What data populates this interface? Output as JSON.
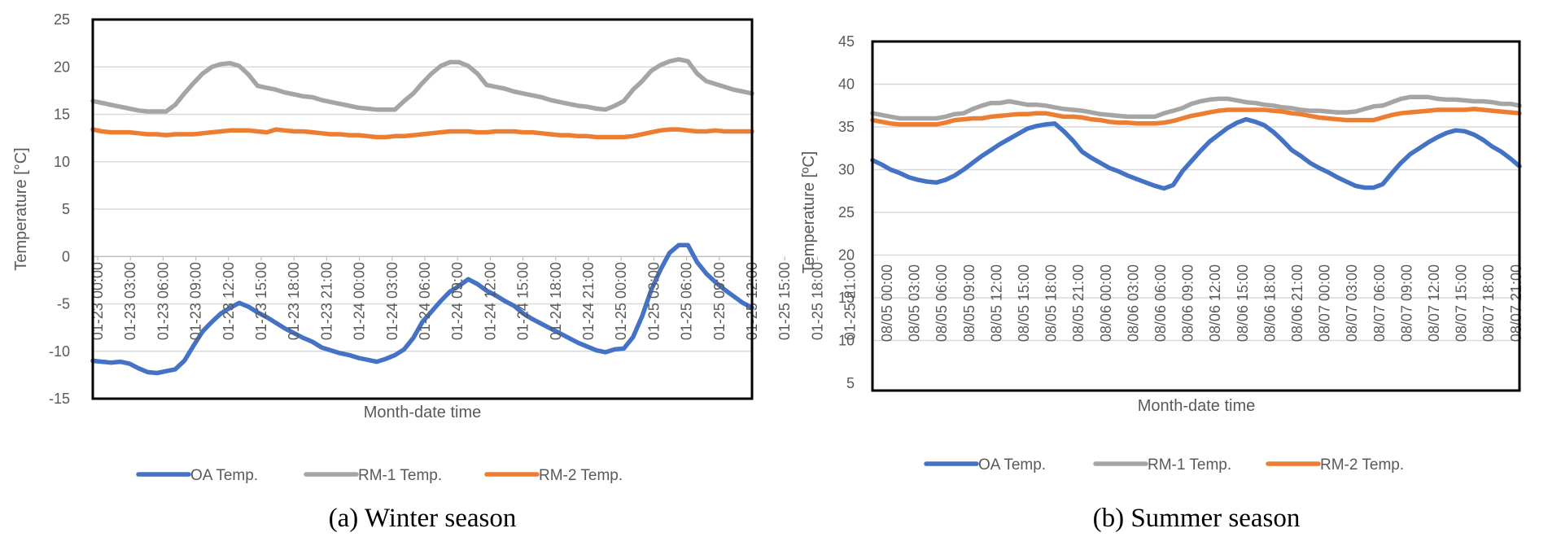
{
  "chart_data": [
    {
      "type": "line",
      "title": "",
      "caption": "(a) Winter season",
      "xlabel": "Month-date  time",
      "ylabel": "Temperature [°C]",
      "ylim": [
        -15,
        25
      ],
      "yticks": [
        25,
        20,
        15,
        10,
        5,
        0,
        -5,
        -10,
        -15
      ],
      "grid": true,
      "legend_position": "bottom",
      "x_points": 73,
      "x_tick_labels": [
        "01-23 00:00",
        "01-23 03:00",
        "01-23 06:00",
        "01-23 09:00",
        "01-23 12:00",
        "01-23 15:00",
        "01-23 18:00",
        "01-23 21:00",
        "01-24 00:00",
        "01-24 03:00",
        "01-24 06:00",
        "01-24 09:00",
        "01-24 12:00",
        "01-24 15:00",
        "01-24 18:00",
        "01-24 21:00",
        "01-25 00:00",
        "01-25 03:00",
        "01-25 06:00",
        "01-25 09:00",
        "01-25 12:00",
        "01-25 15:00",
        "01-25 18:00",
        "01-25 21:00"
      ],
      "series": [
        {
          "name": "OA Temp.",
          "color": "#4472c4",
          "values": [
            -11,
            -11.1,
            -11.2,
            -11.1,
            -11.3,
            -11.8,
            -12.2,
            -12.3,
            -12.1,
            -11.9,
            -11,
            -9.4,
            -7.9,
            -6.9,
            -6,
            -5.4,
            -4.9,
            -5.3,
            -5.9,
            -6.4,
            -7,
            -7.6,
            -8.1,
            -8.6,
            -9,
            -9.6,
            -9.9,
            -10.2,
            -10.4,
            -10.7,
            -10.9,
            -11.1,
            -10.8,
            -10.4,
            -9.8,
            -8.6,
            -6.9,
            -5.8,
            -4.7,
            -3.7,
            -3.1,
            -2.4,
            -2.9,
            -3.6,
            -4.1,
            -4.7,
            -5.2,
            -6,
            -6.6,
            -7.1,
            -7.6,
            -8.1,
            -8.6,
            -9.1,
            -9.5,
            -9.9,
            -10.1,
            -9.8,
            -9.7,
            -8.5,
            -6.3,
            -3.5,
            -1.4,
            0.4,
            1.2,
            1.2,
            -0.6,
            -1.8,
            -2.7,
            -3.5,
            -4.2,
            -4.9,
            -5.4
          ]
        },
        {
          "name": "RM-1 Temp.",
          "color": "#a5a5a5",
          "values": [
            16.4,
            16.2,
            16,
            15.8,
            15.6,
            15.4,
            15.3,
            15.3,
            15.3,
            16,
            17.2,
            18.3,
            19.3,
            20,
            20.3,
            20.4,
            20.1,
            19.2,
            18,
            17.8,
            17.6,
            17.3,
            17.1,
            16.9,
            16.8,
            16.5,
            16.3,
            16.1,
            15.9,
            15.7,
            15.6,
            15.5,
            15.5,
            15.5,
            16.4,
            17.2,
            18.3,
            19.3,
            20.1,
            20.5,
            20.5,
            20.1,
            19.3,
            18.1,
            17.9,
            17.7,
            17.4,
            17.2,
            17,
            16.8,
            16.5,
            16.3,
            16.1,
            15.9,
            15.8,
            15.6,
            15.5,
            15.9,
            16.4,
            17.6,
            18.5,
            19.6,
            20.2,
            20.6,
            20.8,
            20.6,
            19.3,
            18.5,
            18.2,
            17.9,
            17.6,
            17.4,
            17.2
          ]
        },
        {
          "name": "RM-2 Temp.",
          "color": "#ed7d31",
          "values": [
            13.4,
            13.2,
            13.1,
            13.1,
            13.1,
            13,
            12.9,
            12.9,
            12.8,
            12.9,
            12.9,
            12.9,
            13,
            13.1,
            13.2,
            13.3,
            13.3,
            13.3,
            13.2,
            13.1,
            13.4,
            13.3,
            13.2,
            13.2,
            13.1,
            13,
            12.9,
            12.9,
            12.8,
            12.8,
            12.7,
            12.6,
            12.6,
            12.7,
            12.7,
            12.8,
            12.9,
            13,
            13.1,
            13.2,
            13.2,
            13.2,
            13.1,
            13.1,
            13.2,
            13.2,
            13.2,
            13.1,
            13.1,
            13,
            12.9,
            12.8,
            12.8,
            12.7,
            12.7,
            12.6,
            12.6,
            12.6,
            12.6,
            12.7,
            12.9,
            13.1,
            13.3,
            13.4,
            13.4,
            13.3,
            13.2,
            13.2,
            13.3,
            13.2,
            13.2,
            13.2,
            13.2
          ]
        }
      ]
    },
    {
      "type": "line",
      "title": "",
      "caption": "(b) Summer season",
      "xlabel": "Month-date  time",
      "ylabel": "Temperature [ºC]",
      "ylim": [
        5,
        45
      ],
      "yticks": [
        45,
        40,
        35,
        30,
        25,
        20,
        15,
        10,
        5
      ],
      "grid": true,
      "legend_position": "bottom",
      "x_points": 72,
      "x_tick_labels": [
        "08/05 00:00",
        "08/05 03:00",
        "08/05 06:00",
        "08/05 09:00",
        "08/05 12:00",
        "08/05 15:00",
        "08/05 18:00",
        "08/05 21:00",
        "08/06 00:00",
        "08/06 03:00",
        "08/06 06:00",
        "08/06 09:00",
        "08/06 12:00",
        "08/06 15:00",
        "08/06 18:00",
        "08/06 21:00",
        "08/07 00:00",
        "08/07 03:00",
        "08/07 06:00",
        "08/07 09:00",
        "08/07 12:00",
        "08/07 15:00",
        "08/07 18:00",
        "08/07 21:00"
      ],
      "series": [
        {
          "name": "OA Temp.",
          "color": "#4472c4",
          "values": [
            31.1,
            30.6,
            30,
            29.6,
            29.1,
            28.8,
            28.6,
            28.5,
            28.8,
            29.3,
            30,
            30.8,
            31.6,
            32.3,
            33,
            33.6,
            34.2,
            34.8,
            35.1,
            35.3,
            35.4,
            34.5,
            33.4,
            32.1,
            31.4,
            30.8,
            30.2,
            29.8,
            29.3,
            28.9,
            28.5,
            28.1,
            27.8,
            28.2,
            29.8,
            31,
            32.2,
            33.3,
            34.1,
            34.9,
            35.5,
            35.9,
            35.6,
            35.2,
            34.4,
            33.4,
            32.3,
            31.6,
            30.8,
            30.2,
            29.7,
            29.1,
            28.6,
            28.1,
            27.9,
            27.9,
            28.3,
            29.6,
            30.8,
            31.8,
            32.5,
            33.2,
            33.8,
            34.3,
            34.6,
            34.5,
            34.1,
            33.5,
            32.7,
            32.1,
            31.3,
            30.4
          ]
        },
        {
          "name": "RM-1 Temp.",
          "color": "#a5a5a5",
          "values": [
            36.6,
            36.4,
            36.2,
            36,
            36,
            36,
            36,
            36,
            36.2,
            36.5,
            36.6,
            37.1,
            37.5,
            37.8,
            37.8,
            38,
            37.8,
            37.6,
            37.6,
            37.5,
            37.3,
            37.1,
            37,
            36.9,
            36.7,
            36.5,
            36.4,
            36.3,
            36.2,
            36.2,
            36.2,
            36.2,
            36.6,
            36.9,
            37.2,
            37.7,
            38,
            38.2,
            38.3,
            38.3,
            38.1,
            37.9,
            37.8,
            37.6,
            37.5,
            37.3,
            37.2,
            37,
            36.9,
            36.9,
            36.8,
            36.7,
            36.7,
            36.8,
            37.1,
            37.4,
            37.5,
            37.9,
            38.3,
            38.5,
            38.5,
            38.5,
            38.3,
            38.2,
            38.2,
            38.1,
            38,
            38,
            37.9,
            37.7,
            37.7,
            37.5
          ]
        },
        {
          "name": "RM-2 Temp.",
          "color": "#ed7d31",
          "values": [
            35.8,
            35.6,
            35.4,
            35.3,
            35.3,
            35.3,
            35.3,
            35.3,
            35.5,
            35.8,
            35.9,
            36,
            36,
            36.2,
            36.3,
            36.4,
            36.5,
            36.5,
            36.6,
            36.6,
            36.4,
            36.2,
            36.2,
            36.1,
            35.9,
            35.8,
            35.6,
            35.5,
            35.5,
            35.4,
            35.4,
            35.4,
            35.5,
            35.7,
            36,
            36.3,
            36.5,
            36.7,
            36.9,
            37,
            37,
            37,
            37,
            37,
            36.9,
            36.8,
            36.6,
            36.5,
            36.3,
            36.1,
            36,
            35.9,
            35.8,
            35.8,
            35.8,
            35.8,
            36.1,
            36.4,
            36.6,
            36.7,
            36.8,
            36.9,
            37,
            37,
            37,
            37,
            37.1,
            37,
            36.9,
            36.8,
            36.7,
            36.6
          ]
        }
      ]
    }
  ]
}
